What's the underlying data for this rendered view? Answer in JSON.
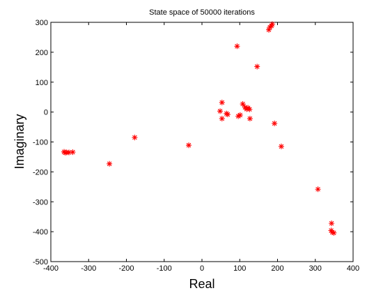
{
  "chart_data": {
    "type": "scatter",
    "title": "State space of 50000 iterations",
    "xlabel": "Real",
    "ylabel": "Imaginary",
    "xlim": [
      -400,
      400
    ],
    "ylim": [
      -500,
      300
    ],
    "xticks": [
      -400,
      -300,
      -200,
      -100,
      0,
      100,
      200,
      300,
      400
    ],
    "yticks": [
      -500,
      -400,
      -300,
      -200,
      -100,
      0,
      100,
      200,
      300
    ],
    "xtick_labels": [
      "-400",
      "-300",
      "-200",
      "-100",
      "0",
      "100",
      "200",
      "300",
      "400"
    ],
    "ytick_labels": [
      "-500",
      "-400",
      "-300",
      "-200",
      "-100",
      "0",
      "100",
      "200",
      "300"
    ],
    "grid": false,
    "marker": "*",
    "marker_color": "#ff0000",
    "points": [
      {
        "x": -365,
        "y": -133
      },
      {
        "x": -362,
        "y": -136
      },
      {
        "x": -358,
        "y": -135
      },
      {
        "x": -352,
        "y": -135
      },
      {
        "x": -342,
        "y": -134
      },
      {
        "x": -245,
        "y": -173
      },
      {
        "x": -178,
        "y": -85
      },
      {
        "x": -35,
        "y": -111
      },
      {
        "x": 48,
        "y": 3
      },
      {
        "x": 53,
        "y": 32
      },
      {
        "x": 53,
        "y": -22
      },
      {
        "x": 65,
        "y": -5
      },
      {
        "x": 68,
        "y": -8
      },
      {
        "x": 93,
        "y": 220
      },
      {
        "x": 96,
        "y": -14
      },
      {
        "x": 101,
        "y": -10
      },
      {
        "x": 108,
        "y": 27
      },
      {
        "x": 114,
        "y": 16
      },
      {
        "x": 118,
        "y": 10
      },
      {
        "x": 122,
        "y": 14
      },
      {
        "x": 126,
        "y": 9
      },
      {
        "x": 127,
        "y": -22
      },
      {
        "x": 146,
        "y": 152
      },
      {
        "x": 177,
        "y": 275
      },
      {
        "x": 180,
        "y": 284
      },
      {
        "x": 184,
        "y": 288
      },
      {
        "x": 186,
        "y": 294
      },
      {
        "x": 192,
        "y": -38
      },
      {
        "x": 210,
        "y": -115
      },
      {
        "x": 307,
        "y": -258
      },
      {
        "x": 343,
        "y": -372
      },
      {
        "x": 342,
        "y": -396
      },
      {
        "x": 345,
        "y": -402
      },
      {
        "x": 349,
        "y": -404
      }
    ]
  }
}
